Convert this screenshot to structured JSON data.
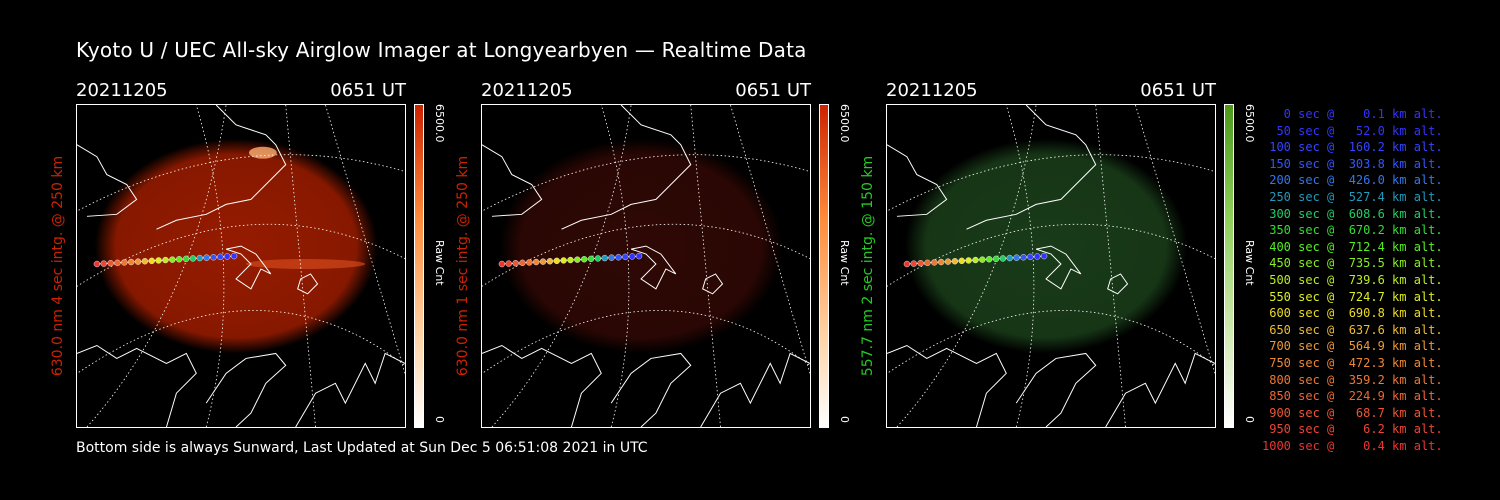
{
  "title": "Kyoto U / UEC All-sky Airglow Imager at Longyearbyen — Realtime Data",
  "footer": "Bottom side is always Sunward, Last Updated at Sun Dec  5 06:51:08 2021 in UTC",
  "panels": [
    {
      "date": "20211205",
      "time": "0651 UT",
      "ylabel": "630.0 nm 4 sec intg. @ 250 km",
      "color": "#cc2200",
      "cbar_max": "6500.0",
      "cbar_unit": "Raw Cnt",
      "cbar_min": "0",
      "glow": "#b02000",
      "glow_opacity": 0.85
    },
    {
      "date": "20211205",
      "time": "0651 UT",
      "ylabel": "630.0 nm 1 sec intg. @ 250 km",
      "color": "#cc2200",
      "cbar_max": "6500.0",
      "cbar_unit": "Raw Cnt",
      "cbar_min": "0",
      "glow": "#3a0a05",
      "glow_opacity": 0.8
    },
    {
      "date": "20211205",
      "time": "0651 UT",
      "ylabel": "557.7 nm 2 sec intg. @ 150 km",
      "color": "#22cc22",
      "cbar_max": "6500.0",
      "cbar_unit": "Raw Cnt",
      "cbar_min": "0",
      "glow": "#1f4a1f",
      "glow_opacity": 0.8
    }
  ],
  "legend": [
    {
      "text": "   0 sec @    0.1 km alt.",
      "color": "#3333ff"
    },
    {
      "text": "  50 sec @   52.0 km alt.",
      "color": "#3333ff"
    },
    {
      "text": " 100 sec @  160.2 km alt.",
      "color": "#3344ff"
    },
    {
      "text": " 150 sec @  303.8 km alt.",
      "color": "#3355ff"
    },
    {
      "text": " 200 sec @  426.0 km alt.",
      "color": "#3377ee"
    },
    {
      "text": " 250 sec @  527.4 km alt.",
      "color": "#2299bb"
    },
    {
      "text": " 300 sec @  608.6 km alt.",
      "color": "#22cc66"
    },
    {
      "text": " 350 sec @  670.2 km alt.",
      "color": "#33dd33"
    },
    {
      "text": " 400 sec @  712.4 km alt.",
      "color": "#55ee22"
    },
    {
      "text": " 450 sec @  735.5 km alt.",
      "color": "#88ee22"
    },
    {
      "text": " 500 sec @  739.6 km alt.",
      "color": "#bbee22"
    },
    {
      "text": " 550 sec @  724.7 km alt.",
      "color": "#ddee22"
    },
    {
      "text": " 600 sec @  690.8 km alt.",
      "color": "#eedd22"
    },
    {
      "text": " 650 sec @  637.6 km alt.",
      "color": "#eebb33"
    },
    {
      "text": " 700 sec @  564.9 km alt.",
      "color": "#ee9933"
    },
    {
      "text": " 750 sec @  472.3 km alt.",
      "color": "#ee8833"
    },
    {
      "text": " 800 sec @  359.2 km alt.",
      "color": "#ee7733"
    },
    {
      "text": " 850 sec @  224.9 km alt.",
      "color": "#ee6633"
    },
    {
      "text": " 900 sec @   68.7 km alt.",
      "color": "#ee5533"
    },
    {
      "text": " 950 sec @    6.2 km alt.",
      "color": "#ee4433"
    },
    {
      "text": "1000 sec @    0.4 km alt.",
      "color": "#ee3333"
    }
  ]
}
